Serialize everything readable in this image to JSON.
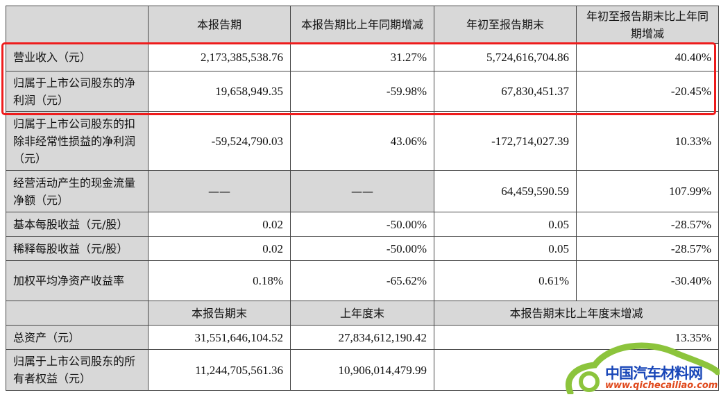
{
  "header": {
    "blank": "",
    "col1": "本报告期",
    "col2": "本报告期比上年同期增减",
    "col3": "年初至报告期末",
    "col4": "年初至报告期末比上年同期增减"
  },
  "rows": [
    {
      "label": "营业收入（元）",
      "v1": "2,173,385,538.76",
      "v2": "31.27%",
      "v3": "5,724,616,704.86",
      "v4": "40.40%"
    },
    {
      "label": "归属于上市公司股东的净利润（元）",
      "v1": "19,658,949.35",
      "v2": "-59.98%",
      "v3": "67,830,451.37",
      "v4": "-20.45%"
    },
    {
      "label": "归属于上市公司股东的扣除非经常性损益的净利润（元）",
      "v1": "-59,524,790.03",
      "v2": "43.06%",
      "v3": "-172,714,027.39",
      "v4": "10.33%"
    },
    {
      "label": "经营活动产生的现金流量净额（元）",
      "v1": "——",
      "v2": "——",
      "v3": "64,459,590.59",
      "v4": "107.99%"
    },
    {
      "label": "基本每股收益（元/股）",
      "v1": "0.02",
      "v2": "-50.00%",
      "v3": "0.05",
      "v4": "-28.57%"
    },
    {
      "label": "稀释每股收益（元/股）",
      "v1": "0.02",
      "v2": "-50.00%",
      "v3": "0.05",
      "v4": "-28.57%"
    },
    {
      "label": "加权平均净资产收益率",
      "v1": "0.18%",
      "v2": "-65.62%",
      "v3": "0.61%",
      "v4": "-30.40%"
    }
  ],
  "header2": {
    "blank": "",
    "col1": "本报告期末",
    "col2": "上年度末",
    "col3": "本报告期末比上年度末增减"
  },
  "rows2": [
    {
      "label": "总资产（元）",
      "v1": "31,551,646,104.52",
      "v2": "27,834,612,190.42",
      "v3": "13.35%"
    },
    {
      "label": "归属于上市公司股东的所有者权益（元）",
      "v1": "11,244,705,561.36",
      "v2": "10,906,014,479.99",
      "v3": ""
    }
  ],
  "highlight_color": "#ee1c1c",
  "watermark": {
    "text": "中国汽车材料网",
    "url": "www.qichecailiao.com"
  }
}
